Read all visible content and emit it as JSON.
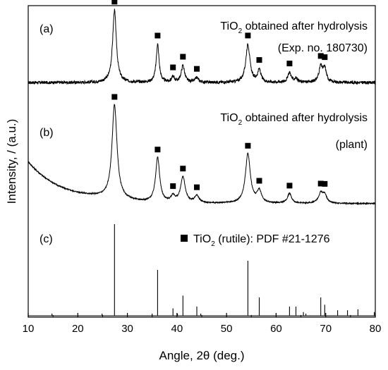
{
  "chart_data": {
    "type": "line",
    "xlabel": "Angle, 2θ (deg.)",
    "ylabel": "Intensity, / (a.u.)",
    "xlim": [
      10,
      80
    ],
    "xticks": [
      10,
      20,
      30,
      40,
      50,
      60,
      70,
      80
    ],
    "grid": false,
    "marker_symbol": "■",
    "panels": [
      {
        "label": "(a)",
        "title_parts": [
          "TiO",
          "2",
          " obtained after hydrolysis"
        ],
        "subtitle": "(Exp. no. 180730)",
        "baseline": 0.1,
        "noise": 0.02,
        "peaks": [
          {
            "x": 27.4,
            "h": 0.95,
            "w": 0.45
          },
          {
            "x": 36.1,
            "h": 0.5,
            "w": 0.35
          },
          {
            "x": 39.2,
            "h": 0.07,
            "w": 0.35
          },
          {
            "x": 41.2,
            "h": 0.22,
            "w": 0.4
          },
          {
            "x": 44.0,
            "h": 0.06,
            "w": 0.4
          },
          {
            "x": 54.3,
            "h": 0.5,
            "w": 0.5
          },
          {
            "x": 56.6,
            "h": 0.16,
            "w": 0.4
          },
          {
            "x": 62.7,
            "h": 0.13,
            "w": 0.4
          },
          {
            "x": 64.0,
            "h": 0.05,
            "w": 0.4
          },
          {
            "x": 69.0,
            "h": 0.2,
            "w": 0.45
          },
          {
            "x": 69.8,
            "h": 0.17,
            "w": 0.4
          }
        ],
        "markers": [
          27.4,
          36.1,
          39.2,
          41.2,
          44.0,
          54.3,
          56.6,
          62.7,
          69.0,
          69.8
        ]
      },
      {
        "label": "(b)",
        "title_parts": [
          "TiO",
          "2",
          " obtained after hydrolysis"
        ],
        "subtitle": "(plant)",
        "baseline": 0.05,
        "noise": 0.006,
        "hump": 0.85,
        "peaks": [
          {
            "x": 27.4,
            "h": 0.95,
            "w": 0.6
          },
          {
            "x": 36.1,
            "h": 0.45,
            "w": 0.5
          },
          {
            "x": 39.2,
            "h": 0.06,
            "w": 0.5
          },
          {
            "x": 41.2,
            "h": 0.26,
            "w": 0.55
          },
          {
            "x": 44.0,
            "h": 0.07,
            "w": 0.55
          },
          {
            "x": 54.3,
            "h": 0.5,
            "w": 0.6
          },
          {
            "x": 56.6,
            "h": 0.12,
            "w": 0.55
          },
          {
            "x": 62.7,
            "h": 0.1,
            "w": 0.5
          },
          {
            "x": 69.0,
            "h": 0.1,
            "w": 0.55
          },
          {
            "x": 69.8,
            "h": 0.08,
            "w": 0.5
          }
        ],
        "markers": [
          27.4,
          36.1,
          39.2,
          41.2,
          44.0,
          54.3,
          56.6,
          62.7,
          69.0,
          69.8
        ]
      },
      {
        "label": "(c)",
        "legend_parts": [
          "TiO",
          "2",
          " (rutile): PDF #21-1276"
        ],
        "reference_lines": [
          {
            "x": 27.4,
            "h": 1.0
          },
          {
            "x": 36.1,
            "h": 0.5
          },
          {
            "x": 39.2,
            "h": 0.08
          },
          {
            "x": 41.2,
            "h": 0.22
          },
          {
            "x": 44.0,
            "h": 0.1
          },
          {
            "x": 54.3,
            "h": 0.6
          },
          {
            "x": 56.6,
            "h": 0.2
          },
          {
            "x": 62.7,
            "h": 0.1
          },
          {
            "x": 64.0,
            "h": 0.1
          },
          {
            "x": 65.5,
            "h": 0.04
          },
          {
            "x": 69.0,
            "h": 0.2
          },
          {
            "x": 69.8,
            "h": 0.12
          },
          {
            "x": 72.4,
            "h": 0.06
          },
          {
            "x": 74.4,
            "h": 0.06
          },
          {
            "x": 76.5,
            "h": 0.07
          },
          {
            "x": 79.8,
            "h": 0.04
          },
          {
            "x": 14.8,
            "h": 0.01
          },
          {
            "x": 24.9,
            "h": 0.01
          },
          {
            "x": 35.0,
            "h": 0.01
          },
          {
            "x": 40.1,
            "h": 0.01
          },
          {
            "x": 44.8,
            "h": 0.01
          },
          {
            "x": 60.0,
            "h": 0.01
          },
          {
            "x": 66.0,
            "h": 0.01
          }
        ]
      }
    ]
  }
}
